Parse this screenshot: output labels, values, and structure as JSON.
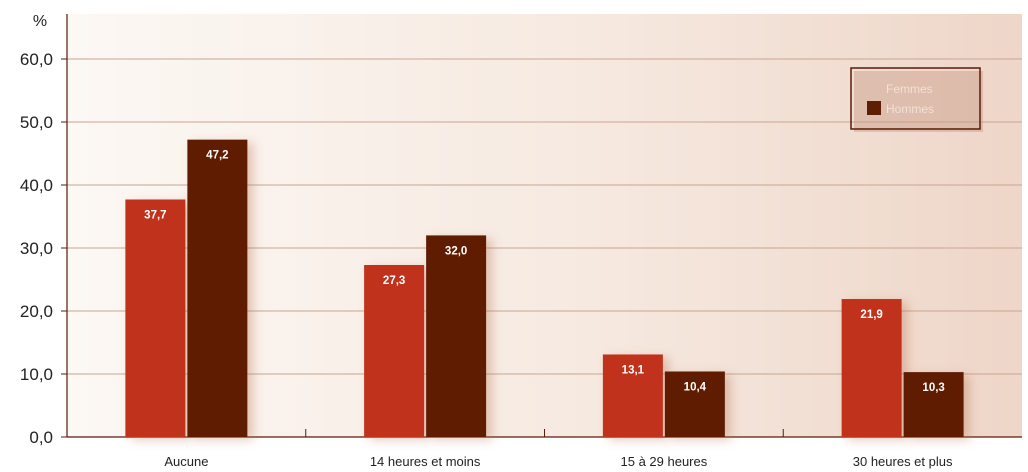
{
  "chart_data": {
    "type": "bar",
    "ylabel": "%",
    "ylim": [
      0,
      60
    ],
    "yticks": [
      0,
      10,
      20,
      30,
      40,
      50,
      60
    ],
    "ytick_labels": [
      "0,0",
      "10,0",
      "20,0",
      "30,0",
      "40,0",
      "50,0",
      "60,0"
    ],
    "categories": [
      "Aucune",
      "14 heures et moins",
      "15 à 29 heures",
      "30 heures et plus"
    ],
    "series": [
      {
        "name": "Femmes",
        "values": [
          37.7,
          27.3,
          13.1,
          21.9
        ],
        "labels": [
          "37,7",
          "27,3",
          "13,1",
          "21,9"
        ],
        "color": "#c0301c"
      },
      {
        "name": "Hommes",
        "values": [
          47.2,
          32.0,
          10.4,
          10.3
        ],
        "labels": [
          "47,2",
          "32,0",
          "10,4",
          "10,3"
        ],
        "color": "#5e1e06"
      }
    ],
    "legend_position": "top-right",
    "grid": true,
    "colors": {
      "axis": "#5a1a08",
      "grid": "#c9a591",
      "background_light": "#fcf8f4",
      "background_dark": "#eed6c8",
      "legend_text": "#f3e0d6"
    }
  }
}
